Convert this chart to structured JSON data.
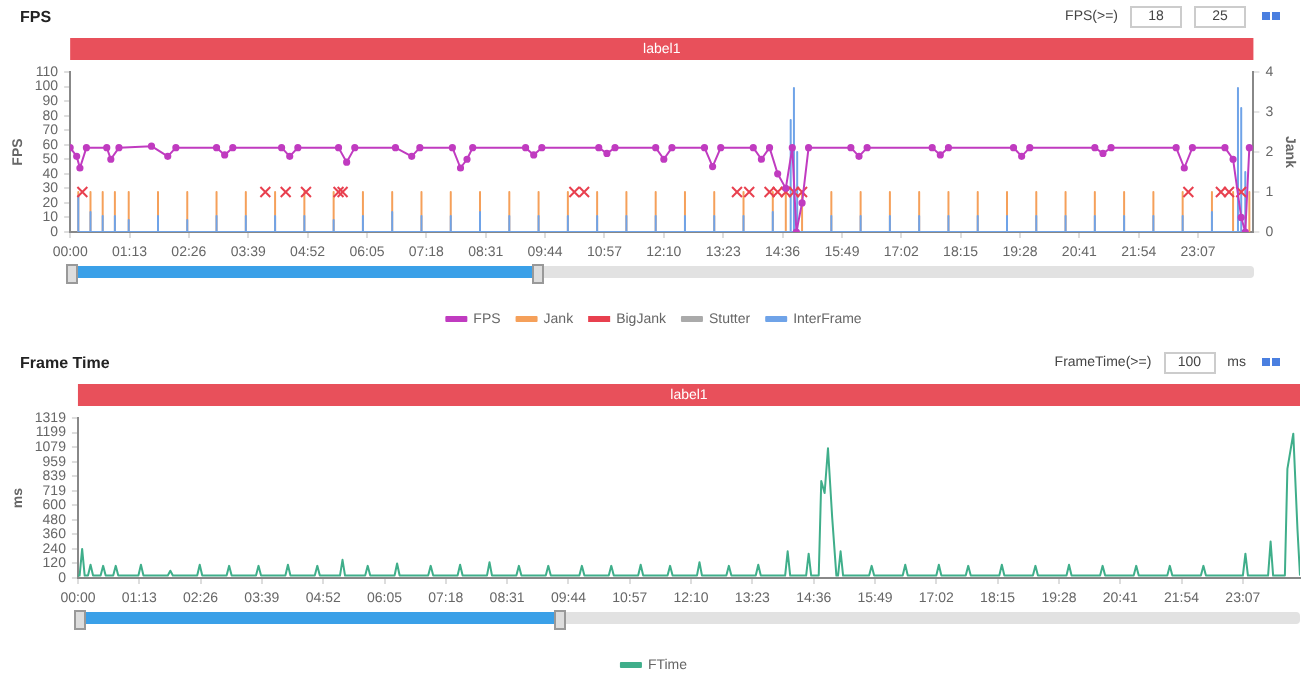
{
  "chart_data": [
    {
      "type": "line",
      "title": "FPS",
      "ylabel": "FPS",
      "y2label": "Jank",
      "legend": "bottom",
      "annotations": [
        "label1",
        "FPS(>=)",
        "18",
        "25"
      ],
      "xlim": [
        0,
        1455
      ],
      "xticks": [
        {
          "value": 0,
          "label": "00:00"
        },
        {
          "value": 73,
          "label": "01:13"
        },
        {
          "value": 146,
          "label": "02:26"
        },
        {
          "value": 219,
          "label": "03:39"
        },
        {
          "value": 292,
          "label": "04:52"
        },
        {
          "value": 365,
          "label": "06:05"
        },
        {
          "value": 438,
          "label": "07:18"
        },
        {
          "value": 511,
          "label": "08:31"
        },
        {
          "value": 584,
          "label": "09:44"
        },
        {
          "value": 657,
          "label": "10:57"
        },
        {
          "value": 730,
          "label": "12:10"
        },
        {
          "value": 803,
          "label": "13:23"
        },
        {
          "value": 876,
          "label": "14:36"
        },
        {
          "value": 949,
          "label": "15:49"
        },
        {
          "value": 1022,
          "label": "17:02"
        },
        {
          "value": 1095,
          "label": "18:15"
        },
        {
          "value": 1168,
          "label": "19:28"
        },
        {
          "value": 1241,
          "label": "20:41"
        },
        {
          "value": 1314,
          "label": "21:54"
        },
        {
          "value": 1387,
          "label": "23:07"
        }
      ],
      "ylim": [
        0,
        110
      ],
      "yticks": [
        0,
        10,
        20,
        30,
        40,
        50,
        60,
        70,
        80,
        90,
        100,
        110
      ],
      "y2lim": [
        0,
        4
      ],
      "y2ticks": [
        0,
        1,
        2,
        3,
        4
      ],
      "series": [
        {
          "name": "FPS",
          "type": "line",
          "color": "#c03bc0",
          "marker": "circle",
          "x": [
            0,
            8,
            12,
            20,
            45,
            50,
            60,
            100,
            120,
            130,
            180,
            190,
            200,
            260,
            270,
            280,
            330,
            340,
            350,
            400,
            420,
            430,
            470,
            480,
            488,
            495,
            560,
            570,
            580,
            650,
            660,
            670,
            720,
            730,
            740,
            780,
            790,
            800,
            840,
            850,
            860,
            870,
            880,
            888,
            893,
            900,
            908,
            960,
            970,
            980,
            1060,
            1070,
            1080,
            1160,
            1170,
            1180,
            1260,
            1270,
            1280,
            1360,
            1370,
            1380,
            1420,
            1430,
            1440,
            1445,
            1450
          ],
          "values": [
            58,
            52,
            44,
            58,
            58,
            50,
            58,
            59,
            52,
            58,
            58,
            53,
            58,
            58,
            52,
            58,
            58,
            48,
            58,
            58,
            52,
            58,
            58,
            44,
            50,
            58,
            58,
            53,
            58,
            58,
            54,
            58,
            58,
            50,
            58,
            58,
            45,
            58,
            58,
            50,
            58,
            40,
            30,
            58,
            0,
            20,
            58,
            58,
            52,
            58,
            58,
            53,
            58,
            58,
            52,
            58,
            58,
            54,
            58,
            58,
            44,
            58,
            58,
            50,
            10,
            0,
            58
          ]
        },
        {
          "name": "Jank",
          "type": "line",
          "axis": "y2",
          "color": "#f5a05a",
          "x": [
            10,
            10,
            10,
            25,
            25,
            25,
            40,
            40,
            40,
            55,
            55,
            55,
            72,
            72,
            72,
            108,
            108,
            108,
            144,
            144,
            144,
            180,
            180,
            180,
            216,
            216,
            216,
            252,
            252,
            252,
            288,
            288,
            288,
            324,
            324,
            324,
            360,
            360,
            360,
            396,
            396,
            396,
            432,
            432,
            432,
            468,
            468,
            468,
            504,
            504,
            504,
            540,
            540,
            540,
            576,
            576,
            576,
            612,
            612,
            612,
            648,
            648,
            648,
            684,
            684,
            684,
            720,
            720,
            720,
            756,
            756,
            756,
            792,
            792,
            792,
            828,
            828,
            828,
            864,
            864,
            864,
            880,
            880,
            880,
            900,
            900,
            900,
            936,
            936,
            936,
            972,
            972,
            972,
            1008,
            1008,
            1008,
            1044,
            1044,
            1044,
            1080,
            1080,
            1080,
            1116,
            1116,
            1116,
            1152,
            1152,
            1152,
            1188,
            1188,
            1188,
            1224,
            1224,
            1224,
            1260,
            1260,
            1260,
            1296,
            1296,
            1296,
            1332,
            1332,
            1332,
            1368,
            1368,
            1368,
            1404,
            1404,
            1404,
            1430,
            1430,
            1430,
            1450,
            1450,
            1450
          ],
          "values": [
            0,
            1,
            0,
            0,
            1,
            0,
            0,
            1,
            0,
            0,
            1,
            0,
            0,
            1,
            0,
            0,
            1,
            0,
            0,
            1,
            0,
            0,
            1,
            0,
            0,
            1,
            0,
            0,
            1,
            0,
            0,
            1,
            0,
            0,
            1,
            0,
            0,
            1,
            0,
            0,
            1,
            0,
            0,
            1,
            0,
            0,
            1,
            0,
            0,
            1,
            0,
            0,
            1,
            0,
            0,
            1,
            0,
            0,
            1,
            0,
            0,
            1,
            0,
            0,
            1,
            0,
            0,
            1,
            0,
            0,
            1,
            0,
            0,
            1,
            0,
            0,
            1,
            0,
            0,
            1,
            0,
            0,
            1,
            0,
            0,
            1,
            0,
            0,
            1,
            0,
            0,
            1,
            0,
            0,
            1,
            0,
            0,
            1,
            0,
            0,
            1,
            0,
            0,
            1,
            0,
            0,
            1,
            0,
            0,
            1,
            0,
            0,
            1,
            0,
            0,
            1,
            0,
            0,
            1,
            0,
            0,
            1,
            0,
            0,
            1,
            0,
            0,
            1,
            0,
            0,
            1,
            0,
            0,
            1,
            0
          ]
        },
        {
          "name": "BigJank",
          "type": "scatter",
          "axis": "y2",
          "color": "#e8404f",
          "marker": "cross",
          "x": [
            15,
            240,
            265,
            290,
            330,
            335,
            620,
            632,
            820,
            835,
            860,
            870,
            880,
            890,
            900,
            1375,
            1415,
            1425,
            1440
          ],
          "values": [
            1,
            1,
            1,
            1,
            1,
            1,
            1,
            1,
            1,
            1,
            1,
            1,
            1,
            1,
            1,
            1,
            1,
            1,
            1
          ]
        },
        {
          "name": "Stutter",
          "type": "line",
          "color": "#aaaaaa"
        },
        {
          "name": "InterFrame",
          "type": "line",
          "axis": "y2",
          "color": "#6fa3e8",
          "x": [
            10,
            10,
            10,
            25,
            25,
            25,
            40,
            40,
            40,
            55,
            55,
            55,
            72,
            72,
            72,
            108,
            108,
            108,
            144,
            144,
            144,
            180,
            180,
            180,
            216,
            216,
            216,
            252,
            252,
            252,
            288,
            288,
            288,
            324,
            324,
            324,
            360,
            360,
            360,
            396,
            396,
            396,
            432,
            432,
            432,
            468,
            468,
            468,
            504,
            504,
            504,
            540,
            540,
            540,
            576,
            576,
            576,
            612,
            612,
            612,
            648,
            648,
            648,
            684,
            684,
            684,
            720,
            720,
            720,
            756,
            756,
            756,
            792,
            792,
            792,
            828,
            828,
            828,
            864,
            864,
            864,
            886,
            886,
            886,
            890,
            890,
            890,
            894,
            894,
            894,
            936,
            936,
            936,
            972,
            972,
            972,
            1008,
            1008,
            1008,
            1044,
            1044,
            1044,
            1080,
            1080,
            1080,
            1116,
            1116,
            1116,
            1152,
            1152,
            1152,
            1188,
            1188,
            1188,
            1224,
            1224,
            1224,
            1260,
            1260,
            1260,
            1296,
            1296,
            1296,
            1332,
            1332,
            1332,
            1368,
            1368,
            1368,
            1404,
            1404,
            1404,
            1436,
            1436,
            1436,
            1440,
            1440,
            1440,
            1445,
            1445,
            1445
          ],
          "values": [
            0,
            0.9,
            0,
            0,
            0.5,
            0,
            0,
            0.4,
            0,
            0,
            0.4,
            0,
            0,
            0.3,
            0,
            0,
            0.4,
            0,
            0,
            0.3,
            0,
            0,
            0.4,
            0,
            0,
            0.4,
            0,
            0,
            0.4,
            0,
            0,
            0.4,
            0,
            0,
            0.3,
            0,
            0,
            0.4,
            0,
            0,
            0.5,
            0,
            0,
            0.4,
            0,
            0,
            0.4,
            0,
            0,
            0.5,
            0,
            0,
            0.4,
            0,
            0,
            0.4,
            0,
            0,
            0.4,
            0,
            0,
            0.4,
            0,
            0,
            0.4,
            0,
            0,
            0.4,
            0,
            0,
            0.4,
            0,
            0,
            0.4,
            0,
            0,
            0.4,
            0,
            0,
            0.5,
            0,
            0,
            2.8,
            0,
            0,
            3.6,
            0,
            0,
            2.0,
            0,
            0,
            0.4,
            0,
            0,
            0.4,
            0,
            0,
            0.4,
            0,
            0,
            0.4,
            0,
            0,
            0.4,
            0,
            0,
            0.4,
            0,
            0,
            0.4,
            0,
            0,
            0.4,
            0,
            0,
            0.4,
            0,
            0,
            0.4,
            0,
            0,
            0.4,
            0,
            0,
            0.4,
            0,
            0,
            0.4,
            0,
            0,
            0.5,
            0,
            0,
            3.6,
            0,
            0,
            3.1,
            0,
            0,
            1.5,
            0
          ]
        }
      ]
    },
    {
      "type": "line",
      "title": "Frame Time",
      "ylabel": "ms",
      "legend": "bottom",
      "annotations": [
        "label1",
        "FrameTime(>=)",
        "100",
        "ms"
      ],
      "xlim": [
        0,
        1455
      ],
      "xticks": [
        {
          "value": 0,
          "label": "00:00"
        },
        {
          "value": 73,
          "label": "01:13"
        },
        {
          "value": 146,
          "label": "02:26"
        },
        {
          "value": 219,
          "label": "03:39"
        },
        {
          "value": 292,
          "label": "04:52"
        },
        {
          "value": 365,
          "label": "06:05"
        },
        {
          "value": 438,
          "label": "07:18"
        },
        {
          "value": 511,
          "label": "08:31"
        },
        {
          "value": 584,
          "label": "09:44"
        },
        {
          "value": 657,
          "label": "10:57"
        },
        {
          "value": 730,
          "label": "12:10"
        },
        {
          "value": 803,
          "label": "13:23"
        },
        {
          "value": 876,
          "label": "14:36"
        },
        {
          "value": 949,
          "label": "15:49"
        },
        {
          "value": 1022,
          "label": "17:02"
        },
        {
          "value": 1095,
          "label": "18:15"
        },
        {
          "value": 1168,
          "label": "19:28"
        },
        {
          "value": 1241,
          "label": "20:41"
        },
        {
          "value": 1314,
          "label": "21:54"
        },
        {
          "value": 1387,
          "label": "23:07"
        }
      ],
      "ylim": [
        0,
        1319
      ],
      "yticks": [
        0,
        120,
        240,
        360,
        480,
        600,
        719,
        839,
        959,
        1079,
        1199,
        1319
      ],
      "series": [
        {
          "name": "FTime",
          "type": "line",
          "color": "#3fae8a",
          "x": [
            0,
            2,
            5,
            8,
            12,
            15,
            18,
            27,
            30,
            33,
            42,
            45,
            48,
            72,
            75,
            78,
            107,
            110,
            113,
            142,
            145,
            148,
            177,
            180,
            183,
            212,
            215,
            218,
            247,
            250,
            253,
            282,
            285,
            288,
            312,
            315,
            318,
            342,
            345,
            348,
            377,
            380,
            383,
            417,
            420,
            423,
            452,
            455,
            458,
            487,
            490,
            493,
            522,
            525,
            528,
            557,
            560,
            563,
            597,
            600,
            603,
            632,
            635,
            638,
            667,
            670,
            673,
            702,
            705,
            708,
            737,
            740,
            743,
            772,
            775,
            778,
            807,
            810,
            813,
            842,
            845,
            848,
            867,
            870,
            873,
            882,
            885,
            889,
            893,
            898,
            903,
            905,
            908,
            911,
            942,
            945,
            948,
            982,
            985,
            988,
            1022,
            1025,
            1028,
            1057,
            1060,
            1063,
            1097,
            1100,
            1103,
            1137,
            1140,
            1143,
            1177,
            1180,
            1183,
            1217,
            1220,
            1223,
            1257,
            1260,
            1263,
            1297,
            1300,
            1303,
            1337,
            1340,
            1343,
            1387,
            1390,
            1393,
            1417,
            1420,
            1423,
            1437,
            1440,
            1447,
            1452,
            1455
          ],
          "values": [
            20,
            20,
            240,
            20,
            20,
            110,
            20,
            20,
            100,
            20,
            20,
            100,
            20,
            20,
            110,
            20,
            20,
            60,
            20,
            20,
            110,
            20,
            20,
            100,
            20,
            20,
            100,
            20,
            20,
            110,
            20,
            20,
            100,
            20,
            20,
            150,
            20,
            20,
            100,
            20,
            20,
            120,
            20,
            20,
            100,
            20,
            20,
            110,
            20,
            20,
            130,
            20,
            20,
            100,
            20,
            20,
            100,
            20,
            20,
            100,
            20,
            20,
            100,
            20,
            20,
            110,
            20,
            20,
            100,
            20,
            20,
            130,
            20,
            20,
            100,
            20,
            20,
            110,
            20,
            20,
            220,
            20,
            20,
            200,
            20,
            20,
            800,
            700,
            1070,
            500,
            20,
            20,
            220,
            20,
            20,
            100,
            20,
            20,
            110,
            20,
            20,
            110,
            20,
            20,
            100,
            20,
            20,
            110,
            20,
            20,
            100,
            20,
            20,
            110,
            20,
            20,
            100,
            20,
            20,
            100,
            20,
            20,
            100,
            20,
            20,
            100,
            20,
            20,
            200,
            20,
            20,
            300,
            20,
            20,
            900,
            1190,
            400,
            20
          ]
        }
      ]
    }
  ]
}
